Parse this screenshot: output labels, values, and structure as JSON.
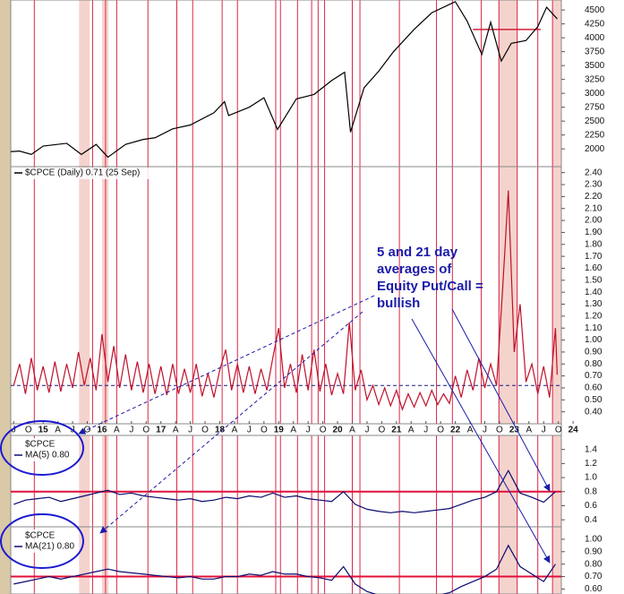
{
  "chart_data": [
    {
      "type": "line",
      "color": "#000000",
      "x": [
        2014.45,
        2014.6,
        2014.8,
        2015.0,
        2015.4,
        2015.65,
        2015.9,
        2016.1,
        2016.4,
        2016.7,
        2016.9,
        2017.2,
        2017.5,
        2017.9,
        2018.08,
        2018.15,
        2018.5,
        2018.75,
        2018.98,
        2019.3,
        2019.6,
        2019.9,
        2020.12,
        2020.22,
        2020.45,
        2020.7,
        2020.95,
        2021.3,
        2021.6,
        2021.9,
        2022.0,
        2022.2,
        2022.45,
        2022.6,
        2022.78,
        2022.95,
        2023.2,
        2023.4,
        2023.55,
        2023.73
      ],
      "values": [
        1950,
        1960,
        1900,
        2050,
        2100,
        1900,
        2080,
        1850,
        2080,
        2170,
        2200,
        2360,
        2430,
        2650,
        2850,
        2600,
        2750,
        2920,
        2350,
        2900,
        2980,
        3230,
        3380,
        2300,
        3100,
        3400,
        3750,
        4150,
        4450,
        4600,
        4650,
        4300,
        3700,
        4280,
        3580,
        3900,
        3950,
        4200,
        4550,
        4340
      ],
      "xlim": [
        2014.45,
        2023.8
      ],
      "ylim": [
        1680,
        4680
      ],
      "yticks": [
        2000,
        2250,
        2500,
        2750,
        3000,
        3250,
        3500,
        3750,
        4000,
        4250,
        4500
      ],
      "hline": {
        "value": 4150,
        "x": [
          2022.3,
          2023.45
        ],
        "color": "#d0203a"
      }
    },
    {
      "type": "line",
      "title": "$CPCE (Daily) 0.71 (25 Sep)",
      "color": "#c0102a",
      "x": [
        2014.5,
        2014.6,
        2014.7,
        2014.8,
        2014.9,
        2015.0,
        2015.1,
        2015.2,
        2015.3,
        2015.4,
        2015.5,
        2015.6,
        2015.7,
        2015.8,
        2015.9,
        2016.0,
        2016.1,
        2016.2,
        2016.3,
        2016.4,
        2016.5,
        2016.6,
        2016.7,
        2016.8,
        2016.9,
        2017.0,
        2017.1,
        2017.2,
        2017.3,
        2017.4,
        2017.5,
        2017.6,
        2017.7,
        2017.8,
        2017.9,
        2018.0,
        2018.1,
        2018.2,
        2018.3,
        2018.4,
        2018.5,
        2018.6,
        2018.7,
        2018.8,
        2018.9,
        2019.0,
        2019.1,
        2019.2,
        2019.3,
        2019.4,
        2019.5,
        2019.6,
        2019.7,
        2019.8,
        2019.9,
        2020.0,
        2020.1,
        2020.2,
        2020.3,
        2020.4,
        2020.5,
        2020.6,
        2020.7,
        2020.8,
        2020.9,
        2021.0,
        2021.1,
        2021.2,
        2021.3,
        2021.4,
        2021.5,
        2021.6,
        2021.7,
        2021.8,
        2021.9,
        2022.0,
        2022.1,
        2022.2,
        2022.3,
        2022.4,
        2022.5,
        2022.6,
        2022.7,
        2022.8,
        2022.9,
        2023.0,
        2023.1,
        2023.2,
        2023.3,
        2023.4,
        2023.5,
        2023.6,
        2023.7,
        2023.73
      ],
      "values": [
        0.62,
        0.8,
        0.55,
        0.85,
        0.58,
        0.78,
        0.56,
        0.82,
        0.57,
        0.8,
        0.6,
        0.9,
        0.62,
        0.85,
        0.58,
        1.05,
        0.65,
        0.95,
        0.6,
        0.88,
        0.58,
        0.82,
        0.56,
        0.8,
        0.55,
        0.78,
        0.54,
        0.8,
        0.55,
        0.76,
        0.56,
        0.8,
        0.53,
        0.72,
        0.52,
        0.75,
        0.92,
        0.58,
        0.8,
        0.56,
        0.78,
        0.55,
        0.76,
        0.58,
        0.85,
        1.1,
        0.6,
        0.8,
        0.56,
        0.88,
        0.58,
        0.92,
        0.57,
        0.8,
        0.54,
        0.72,
        0.55,
        1.15,
        0.58,
        0.75,
        0.5,
        0.62,
        0.46,
        0.6,
        0.45,
        0.58,
        0.42,
        0.55,
        0.44,
        0.56,
        0.45,
        0.58,
        0.46,
        0.55,
        0.47,
        0.7,
        0.52,
        0.75,
        0.58,
        0.85,
        0.6,
        0.8,
        0.62,
        1.4,
        2.25,
        0.9,
        1.3,
        0.65,
        0.8,
        0.55,
        0.78,
        0.52,
        1.1,
        0.71
      ],
      "xlim": [
        2014.45,
        2023.8
      ],
      "ylim": [
        0.3,
        2.45
      ],
      "yticks": [
        {
          "value": 2.4,
          "label": "2.40"
        },
        {
          "value": 2.3,
          "label": "2.30"
        },
        {
          "value": 2.2,
          "label": "2.20"
        },
        {
          "value": 2.1,
          "label": "2.10"
        },
        {
          "value": 2.0,
          "label": "2.00"
        },
        {
          "value": 1.9,
          "label": "1.90"
        },
        {
          "value": 1.8,
          "label": "1.80"
        },
        {
          "value": 1.7,
          "label": "1.70"
        },
        {
          "value": 1.6,
          "label": "1.60"
        },
        {
          "value": 1.5,
          "label": "1.50"
        },
        {
          "value": 1.4,
          "label": "1.40"
        },
        {
          "value": 1.3,
          "label": "1.30"
        },
        {
          "value": 1.2,
          "label": "1.20"
        },
        {
          "value": 1.1,
          "label": "1.10"
        },
        {
          "value": 1.0,
          "label": "1.00"
        },
        {
          "value": 0.9,
          "label": "0.90"
        },
        {
          "value": 0.8,
          "label": "0.80"
        },
        {
          "value": 0.7,
          "label": "0.70"
        },
        {
          "value": 0.6,
          "label": "0.60"
        },
        {
          "value": 0.5,
          "label": "0.50"
        },
        {
          "value": 0.4,
          "label": "0.40"
        }
      ],
      "xticks": [
        {
          "value": 2014.5,
          "label": "J"
        },
        {
          "value": 2014.75,
          "label": "O"
        },
        {
          "value": 2015,
          "label": "15"
        },
        {
          "value": 2015.25,
          "label": "A"
        },
        {
          "value": 2015.5,
          "label": "J"
        },
        {
          "value": 2015.75,
          "label": "O"
        },
        {
          "value": 2016,
          "label": "16"
        },
        {
          "value": 2016.25,
          "label": "A"
        },
        {
          "value": 2016.5,
          "label": "J"
        },
        {
          "value": 2016.75,
          "label": "O"
        },
        {
          "value": 2017,
          "label": "17"
        },
        {
          "value": 2017.25,
          "label": "A"
        },
        {
          "value": 2017.5,
          "label": "J"
        },
        {
          "value": 2017.75,
          "label": "O"
        },
        {
          "value": 2018,
          "label": "18"
        },
        {
          "value": 2018.25,
          "label": "A"
        },
        {
          "value": 2018.5,
          "label": "J"
        },
        {
          "value": 2018.75,
          "label": "O"
        },
        {
          "value": 2019,
          "label": "19"
        },
        {
          "value": 2019.25,
          "label": "A"
        },
        {
          "value": 2019.5,
          "label": "J"
        },
        {
          "value": 2019.75,
          "label": "O"
        },
        {
          "value": 2020,
          "label": "20"
        },
        {
          "value": 2020.25,
          "label": "A"
        },
        {
          "value": 2020.5,
          "label": "J"
        },
        {
          "value": 2020.75,
          "label": "O"
        },
        {
          "value": 2021,
          "label": "21"
        },
        {
          "value": 2021.25,
          "label": "A"
        },
        {
          "value": 2021.5,
          "label": "J"
        },
        {
          "value": 2021.75,
          "label": "O"
        },
        {
          "value": 2022,
          "label": "22"
        },
        {
          "value": 2022.25,
          "label": "A"
        },
        {
          "value": 2022.5,
          "label": "J"
        },
        {
          "value": 2022.75,
          "label": "O"
        },
        {
          "value": 2023,
          "label": "23"
        },
        {
          "value": 2023.25,
          "label": "A"
        },
        {
          "value": 2023.5,
          "label": "J"
        },
        {
          "value": 2023.75,
          "label": "O"
        },
        {
          "value": 2024,
          "label": "24"
        }
      ],
      "hline": {
        "value": 0.62,
        "color": "#1a1a80",
        "dashed": true
      }
    },
    {
      "type": "line",
      "title": "$CPCE",
      "subtitle": "MA(5) 0.80",
      "color": "#0a0a6e",
      "x": [
        2014.5,
        2014.7,
        2014.9,
        2015.1,
        2015.3,
        2015.5,
        2015.7,
        2015.9,
        2016.1,
        2016.3,
        2016.5,
        2016.7,
        2016.9,
        2017.1,
        2017.3,
        2017.5,
        2017.7,
        2017.9,
        2018.1,
        2018.3,
        2018.5,
        2018.7,
        2018.9,
        2019.1,
        2019.3,
        2019.5,
        2019.7,
        2019.9,
        2020.1,
        2020.3,
        2020.5,
        2020.7,
        2020.9,
        2021.1,
        2021.3,
        2021.5,
        2021.7,
        2021.9,
        2022.1,
        2022.3,
        2022.5,
        2022.7,
        2022.9,
        2023.1,
        2023.3,
        2023.5,
        2023.7
      ],
      "values": [
        0.62,
        0.68,
        0.7,
        0.72,
        0.66,
        0.7,
        0.74,
        0.78,
        0.82,
        0.76,
        0.78,
        0.74,
        0.72,
        0.7,
        0.68,
        0.7,
        0.66,
        0.68,
        0.72,
        0.7,
        0.74,
        0.72,
        0.78,
        0.72,
        0.74,
        0.7,
        0.68,
        0.66,
        0.8,
        0.62,
        0.55,
        0.52,
        0.5,
        0.52,
        0.5,
        0.52,
        0.54,
        0.56,
        0.62,
        0.68,
        0.72,
        0.8,
        1.1,
        0.78,
        0.72,
        0.65,
        0.8
      ],
      "xlim": [
        2014.45,
        2023.8
      ],
      "ylim": [
        0.3,
        1.6
      ],
      "yticks": [
        1.4,
        1.2,
        {
          "value": 1.0,
          "label": "1.0"
        },
        0.8,
        0.6,
        0.4
      ],
      "hline": {
        "value": 0.8,
        "color": "#e0103a"
      }
    },
    {
      "type": "line",
      "title": "$CPCE",
      "subtitle": "MA(21) 0.80",
      "color": "#0a0a6e",
      "x": [
        2014.5,
        2014.7,
        2014.9,
        2015.1,
        2015.3,
        2015.5,
        2015.7,
        2015.9,
        2016.1,
        2016.3,
        2016.5,
        2016.7,
        2016.9,
        2017.1,
        2017.3,
        2017.5,
        2017.7,
        2017.9,
        2018.1,
        2018.3,
        2018.5,
        2018.7,
        2018.9,
        2019.1,
        2019.3,
        2019.5,
        2019.7,
        2019.9,
        2020.1,
        2020.3,
        2020.5,
        2020.7,
        2020.9,
        2021.1,
        2021.3,
        2021.5,
        2021.7,
        2021.9,
        2022.1,
        2022.3,
        2022.5,
        2022.7,
        2022.9,
        2023.1,
        2023.3,
        2023.5,
        2023.7
      ],
      "values": [
        0.64,
        0.66,
        0.68,
        0.7,
        0.68,
        0.7,
        0.72,
        0.74,
        0.76,
        0.74,
        0.73,
        0.72,
        0.71,
        0.7,
        0.69,
        0.7,
        0.68,
        0.68,
        0.7,
        0.7,
        0.72,
        0.71,
        0.74,
        0.72,
        0.72,
        0.7,
        0.69,
        0.67,
        0.78,
        0.64,
        0.58,
        0.55,
        0.54,
        0.53,
        0.53,
        0.54,
        0.55,
        0.57,
        0.62,
        0.66,
        0.7,
        0.76,
        0.95,
        0.78,
        0.72,
        0.66,
        0.8
      ],
      "xlim": [
        2014.45,
        2023.8
      ],
      "ylim": [
        0.56,
        1.1
      ],
      "yticks": [
        {
          "value": 1.0,
          "label": "1.00"
        },
        {
          "value": 0.9,
          "label": "0.90"
        },
        {
          "value": 0.8,
          "label": "0.80"
        },
        {
          "value": 0.7,
          "label": "0.70"
        },
        {
          "value": 0.6,
          "label": "0.60"
        }
      ],
      "hline": {
        "value": 0.7,
        "color": "#e0103a"
      }
    }
  ],
  "signals": {
    "color": "#d8284a",
    "lines": [
      2014.85,
      2015.84,
      2016.06,
      2016.25,
      2016.78,
      2017.27,
      2017.54,
      2018.04,
      2018.3,
      2018.95,
      2019.03,
      2019.32,
      2019.56,
      2019.67,
      2019.78,
      2020.25,
      2020.38,
      2021.05,
      2021.68,
      2021.95,
      2022.44,
      2022.74,
      2023.05,
      2023.4,
      2023.65
    ],
    "bands": [
      [
        2015.61,
        2015.79
      ],
      [
        2016.0,
        2016.11
      ],
      [
        2022.73,
        2023.06
      ],
      [
        2023.65,
        2023.8
      ]
    ]
  },
  "annotation": [
    "5 and 21 day",
    "averages of",
    "Equity Put/Call =",
    "bullish"
  ]
}
